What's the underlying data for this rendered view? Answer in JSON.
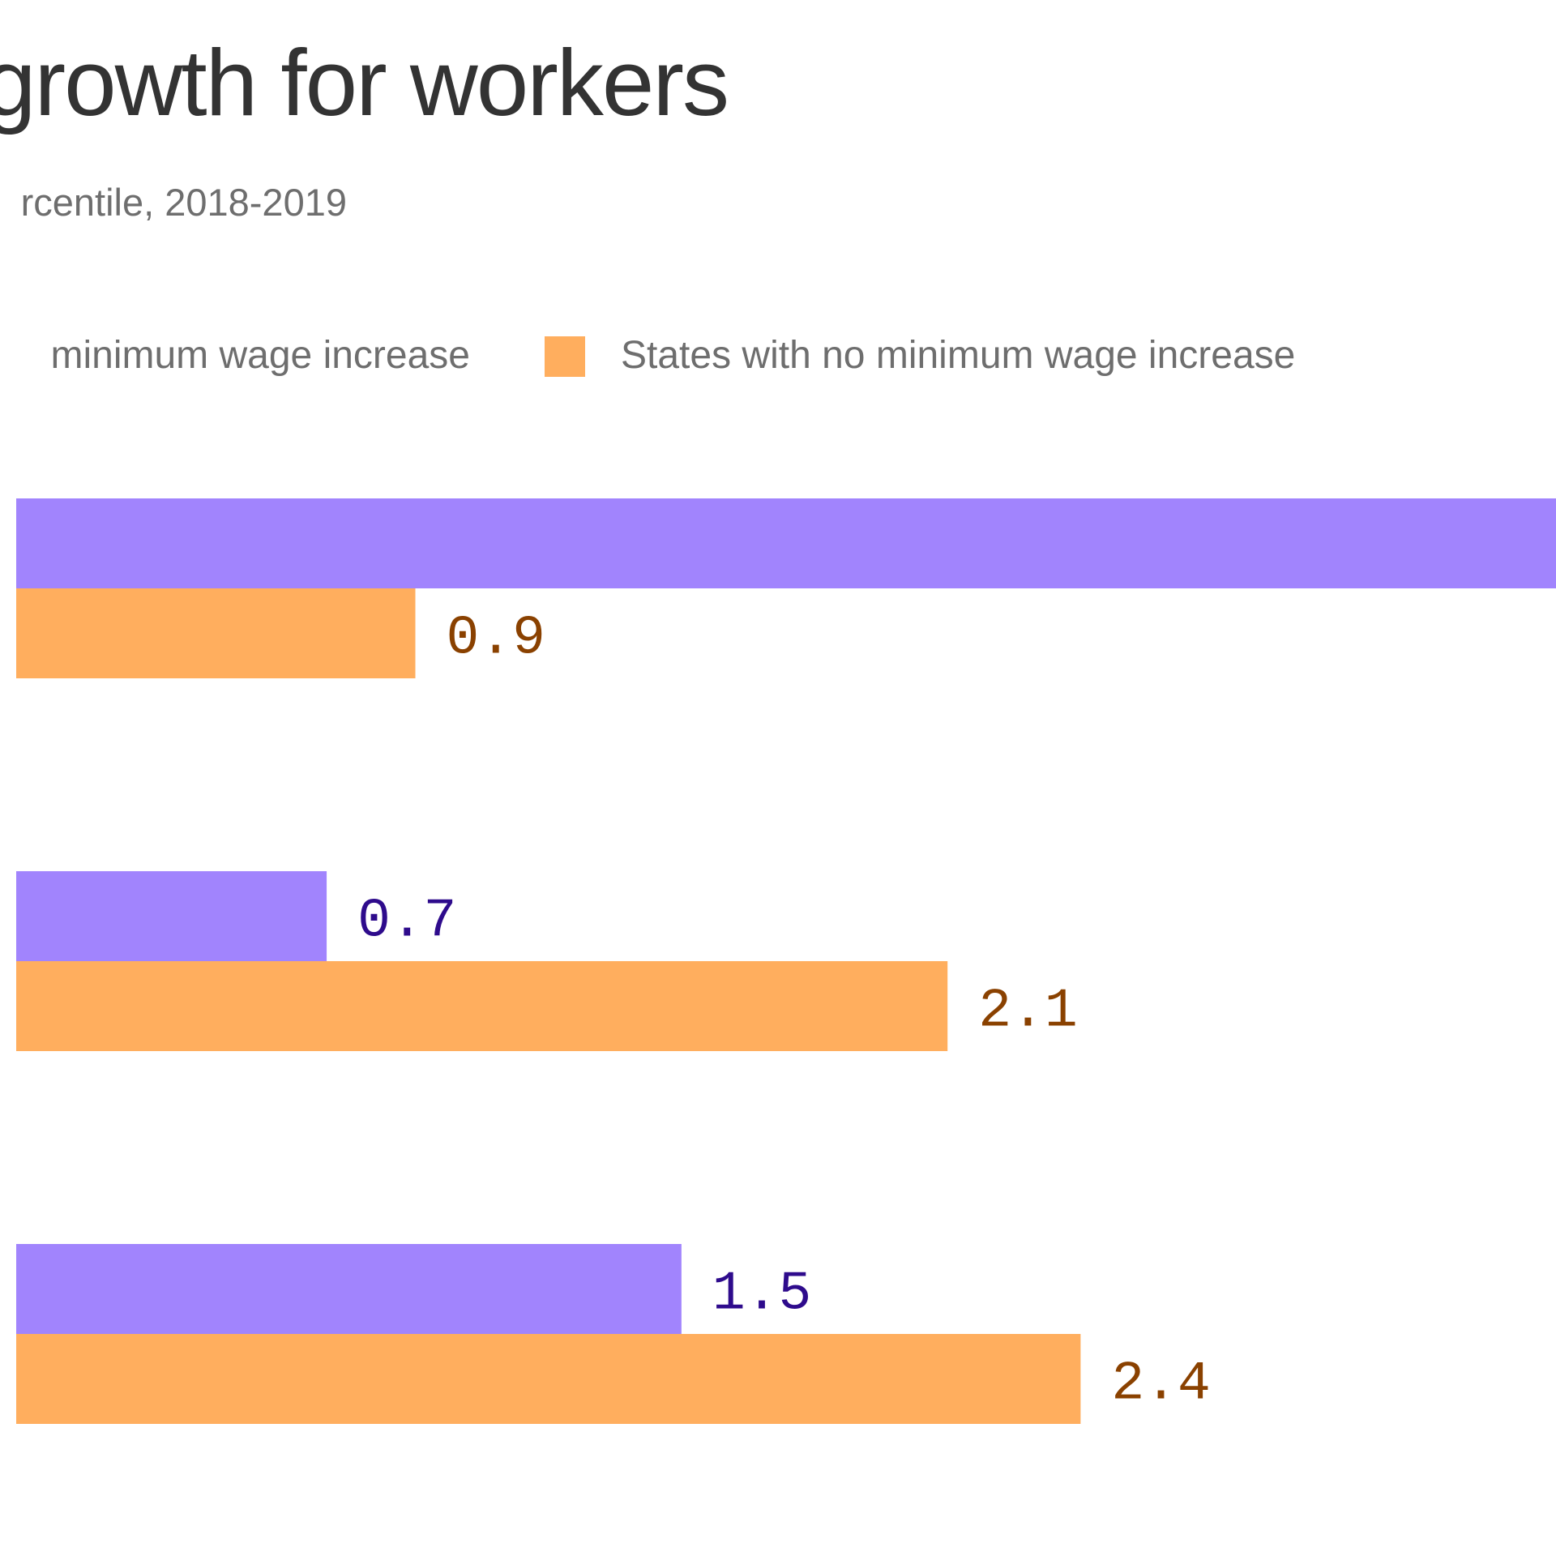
{
  "chart_data": {
    "type": "bar",
    "orientation": "horizontal",
    "title": "growth for workers",
    "subtitle": "rcentile, 2018-2019",
    "categories": [
      "",
      "",
      ""
    ],
    "series": [
      {
        "name": "minimum wage increase",
        "color": "#a184fd",
        "label_color": "#2e0b8c",
        "values": [
          null,
          0.7,
          1.5
        ],
        "value_labels": [
          "",
          "0.7",
          "1.5"
        ],
        "extends_beyond_view": [
          true,
          false,
          false
        ]
      },
      {
        "name": "States with no minimum wage increase",
        "color": "#ffae5e",
        "label_color": "#8a4100",
        "values": [
          0.9,
          2.1,
          2.4
        ],
        "value_labels": [
          "0.9",
          "2.1",
          "2.4"
        ],
        "extends_beyond_view": [
          false,
          false,
          false
        ]
      }
    ],
    "legend": "top",
    "grid": false,
    "xlim": [
      0,
      2.9
    ]
  }
}
